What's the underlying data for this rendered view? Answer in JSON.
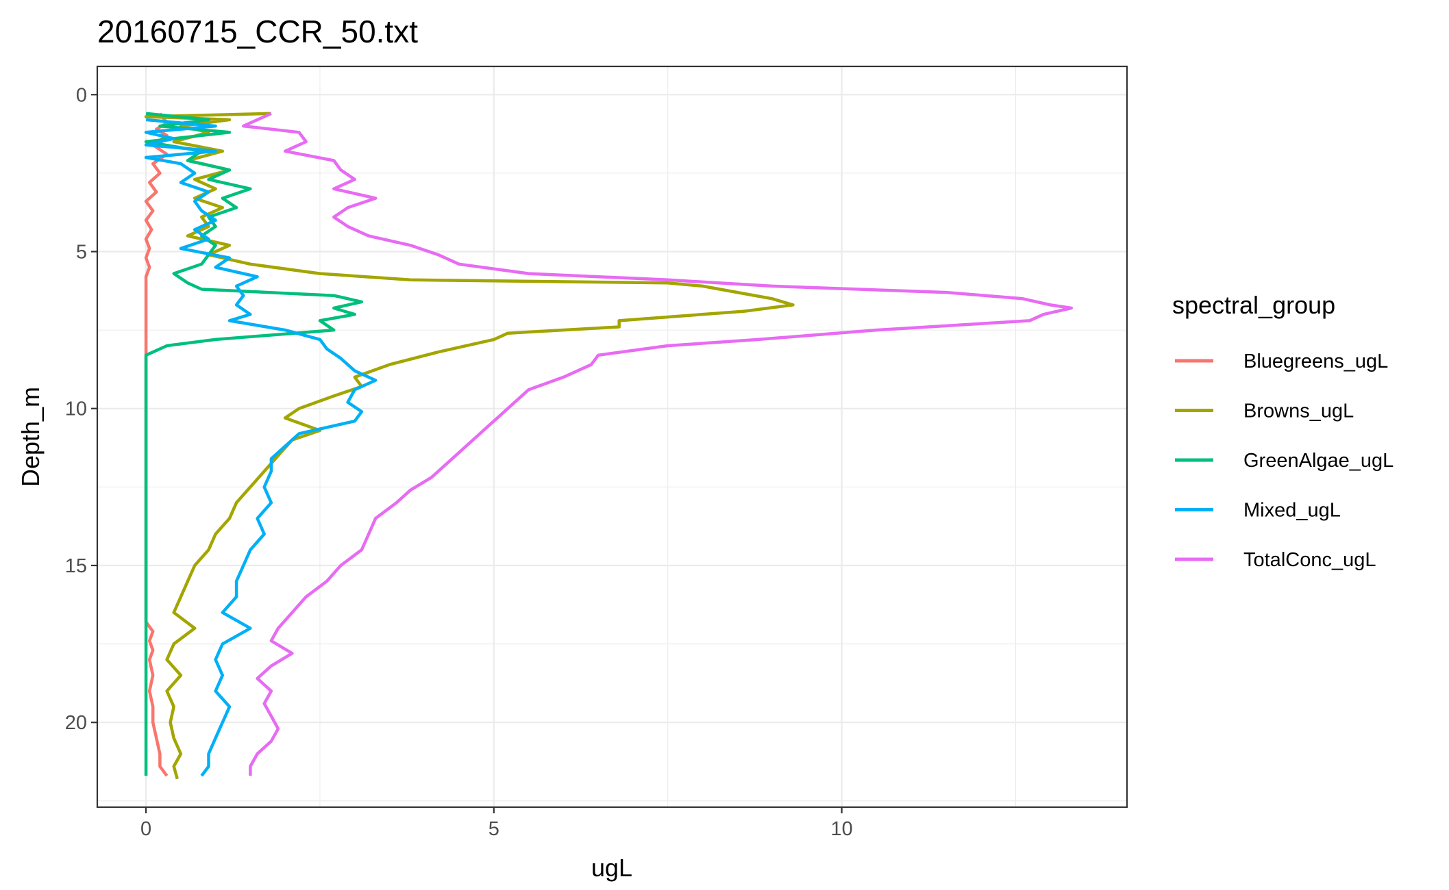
{
  "chart_data": {
    "type": "line",
    "title": "20160715_CCR_50.txt",
    "xlabel": "ugL",
    "ylabel": "Depth_m",
    "xlim": [
      -0.7,
      14.1
    ],
    "ylim": [
      22.7,
      -0.9
    ],
    "y_reversed": true,
    "grid": true,
    "x_ticks": [
      0,
      5,
      10
    ],
    "x_tick_labels": [
      "0",
      "5",
      "10"
    ],
    "y_ticks": [
      0,
      5,
      10,
      15,
      20
    ],
    "y_tick_labels": [
      "0",
      "5",
      "10",
      "15",
      "20"
    ],
    "legend": {
      "title": "spectral_group",
      "position": "right"
    },
    "series": [
      {
        "name": "Bluegreens_ugL",
        "color": "#F8766D",
        "depth": [
          0.6,
          0.9,
          1.1,
          1.3,
          1.6,
          1.9,
          2.2,
          2.5,
          2.8,
          3.1,
          3.4,
          3.7,
          4.0,
          4.3,
          4.6,
          4.9,
          5.2,
          5.5,
          5.8,
          6.2,
          7.0,
          8.0,
          9.0,
          10.0,
          11.0,
          12.0,
          13.0,
          14.0,
          15.0,
          16.0,
          16.8,
          17.1,
          17.4,
          17.7,
          18.0,
          18.5,
          19.0,
          19.5,
          20.0,
          20.5,
          21.0,
          21.4,
          21.7
        ],
        "values": [
          0.2,
          0.3,
          0.15,
          0.3,
          0.1,
          0.3,
          0.1,
          0.2,
          0.05,
          0.15,
          0.0,
          0.1,
          0.0,
          0.08,
          0.0,
          0.05,
          0.0,
          0.05,
          0.0,
          0.0,
          0.0,
          0.0,
          0.0,
          0.0,
          0.0,
          0.0,
          0.0,
          0.0,
          0.0,
          0.0,
          0.0,
          0.1,
          0.05,
          0.1,
          0.05,
          0.1,
          0.05,
          0.1,
          0.1,
          0.15,
          0.2,
          0.2,
          0.3
        ]
      },
      {
        "name": "Browns_ugL",
        "color": "#A3A500",
        "depth": [
          0.6,
          0.7,
          0.8,
          1.0,
          1.2,
          1.5,
          1.8,
          2.1,
          2.4,
          2.7,
          3.0,
          3.3,
          3.6,
          3.9,
          4.2,
          4.5,
          4.8,
          5.1,
          5.4,
          5.7,
          5.9,
          6.0,
          6.1,
          6.3,
          6.5,
          6.7,
          6.9,
          7.2,
          7.4,
          7.6,
          7.8,
          8.2,
          8.6,
          9.0,
          9.3,
          9.6,
          10.0,
          10.3,
          10.7,
          11.0,
          11.5,
          12.0,
          12.5,
          13.0,
          13.5,
          14.0,
          14.5,
          15.0,
          15.5,
          16.0,
          16.5,
          17.0,
          17.5,
          18.0,
          18.5,
          19.0,
          19.5,
          20.0,
          20.5,
          21.0,
          21.4,
          21.8
        ],
        "values": [
          1.8,
          0.0,
          1.2,
          0.5,
          0.9,
          0.4,
          1.1,
          0.6,
          1.2,
          0.7,
          1.0,
          0.7,
          1.1,
          0.8,
          0.9,
          0.6,
          1.2,
          0.9,
          1.5,
          2.5,
          3.8,
          7.5,
          8.0,
          8.5,
          9.0,
          9.3,
          8.6,
          6.8,
          6.8,
          5.2,
          5.0,
          4.2,
          3.5,
          3.0,
          3.1,
          2.7,
          2.2,
          2.0,
          2.5,
          2.1,
          1.9,
          1.7,
          1.5,
          1.3,
          1.2,
          1.0,
          0.9,
          0.7,
          0.6,
          0.5,
          0.4,
          0.7,
          0.4,
          0.3,
          0.5,
          0.3,
          0.4,
          0.35,
          0.4,
          0.5,
          0.4,
          0.45
        ]
      },
      {
        "name": "GreenAlgae_ugL",
        "color": "#00BF7D",
        "depth": [
          0.6,
          0.8,
          1.0,
          1.2,
          1.5,
          1.8,
          2.1,
          2.4,
          2.7,
          3.0,
          3.3,
          3.6,
          3.9,
          4.2,
          4.5,
          4.8,
          5.1,
          5.4,
          5.7,
          6.0,
          6.2,
          6.4,
          6.6,
          6.8,
          7.0,
          7.2,
          7.5,
          7.8,
          8.0,
          8.3,
          10.0,
          12.0,
          14.0,
          16.0,
          18.0,
          20.0,
          21.7
        ],
        "values": [
          0.0,
          0.9,
          0.2,
          1.2,
          0.0,
          0.8,
          0.6,
          1.2,
          0.9,
          1.5,
          1.1,
          1.3,
          0.9,
          1.0,
          0.8,
          1.0,
          0.9,
          0.8,
          0.4,
          0.6,
          0.8,
          2.7,
          3.1,
          2.7,
          3.0,
          2.5,
          2.7,
          1.0,
          0.3,
          0.0,
          0.0,
          0.0,
          0.0,
          0.0,
          0.0,
          0.0,
          0.0
        ]
      },
      {
        "name": "Mixed_ugL",
        "color": "#00B0F6",
        "depth": [
          0.8,
          1.0,
          1.2,
          1.4,
          1.6,
          1.8,
          2.0,
          2.2,
          2.5,
          2.8,
          3.1,
          3.4,
          3.7,
          4.0,
          4.3,
          4.6,
          4.9,
          5.2,
          5.5,
          5.8,
          6.1,
          6.4,
          6.7,
          7.0,
          7.2,
          7.5,
          7.8,
          8.1,
          8.4,
          8.8,
          9.1,
          9.4,
          9.8,
          10.1,
          10.4,
          10.8,
          11.2,
          11.6,
          12.0,
          12.5,
          13.0,
          13.5,
          14.0,
          14.5,
          15.0,
          15.5,
          16.0,
          16.5,
          17.0,
          17.5,
          18.0,
          18.5,
          19.0,
          19.5,
          20.0,
          20.5,
          21.0,
          21.4,
          21.7
        ],
        "values": [
          0.0,
          1.0,
          0.0,
          0.4,
          0.0,
          1.0,
          0.0,
          0.5,
          0.7,
          0.5,
          0.9,
          0.7,
          0.8,
          1.0,
          0.7,
          0.9,
          0.5,
          1.2,
          1.0,
          1.6,
          1.3,
          1.4,
          1.3,
          1.5,
          1.2,
          2.0,
          2.5,
          2.6,
          2.8,
          3.0,
          3.3,
          3.0,
          2.9,
          3.1,
          3.0,
          2.2,
          2.0,
          1.8,
          1.8,
          1.7,
          1.8,
          1.6,
          1.7,
          1.5,
          1.4,
          1.3,
          1.3,
          1.1,
          1.5,
          1.1,
          1.0,
          1.1,
          1.0,
          1.2,
          1.1,
          1.0,
          0.9,
          0.9,
          0.8
        ]
      },
      {
        "name": "TotalConc_ugL",
        "color": "#E76BF3",
        "depth": [
          0.6,
          0.8,
          1.0,
          1.2,
          1.5,
          1.8,
          2.1,
          2.4,
          2.7,
          3.0,
          3.3,
          3.6,
          3.9,
          4.2,
          4.5,
          4.8,
          5.1,
          5.4,
          5.7,
          5.9,
          6.1,
          6.3,
          6.5,
          6.7,
          6.8,
          7.0,
          7.2,
          7.5,
          7.8,
          8.0,
          8.3,
          8.6,
          9.0,
          9.4,
          9.8,
          10.2,
          10.6,
          11.0,
          11.4,
          11.8,
          12.2,
          12.6,
          13.0,
          13.5,
          14.0,
          14.5,
          15.0,
          15.5,
          16.0,
          16.5,
          17.0,
          17.4,
          17.8,
          18.2,
          18.6,
          19.0,
          19.4,
          19.8,
          20.2,
          20.6,
          21.0,
          21.4,
          21.7
        ],
        "values": [
          1.8,
          1.6,
          1.4,
          2.2,
          2.3,
          2.0,
          2.7,
          2.8,
          3.0,
          2.7,
          3.3,
          2.9,
          2.7,
          2.9,
          3.2,
          3.8,
          4.2,
          4.5,
          5.5,
          7.5,
          9.0,
          11.5,
          12.6,
          13.0,
          13.3,
          12.9,
          12.7,
          10.5,
          8.8,
          7.5,
          6.5,
          6.4,
          6.0,
          5.5,
          5.3,
          5.1,
          4.9,
          4.7,
          4.5,
          4.3,
          4.1,
          3.8,
          3.6,
          3.3,
          3.2,
          3.1,
          2.8,
          2.6,
          2.3,
          2.1,
          1.9,
          1.8,
          2.1,
          1.8,
          1.6,
          1.8,
          1.7,
          1.8,
          1.9,
          1.8,
          1.6,
          1.5,
          1.5
        ]
      }
    ]
  }
}
